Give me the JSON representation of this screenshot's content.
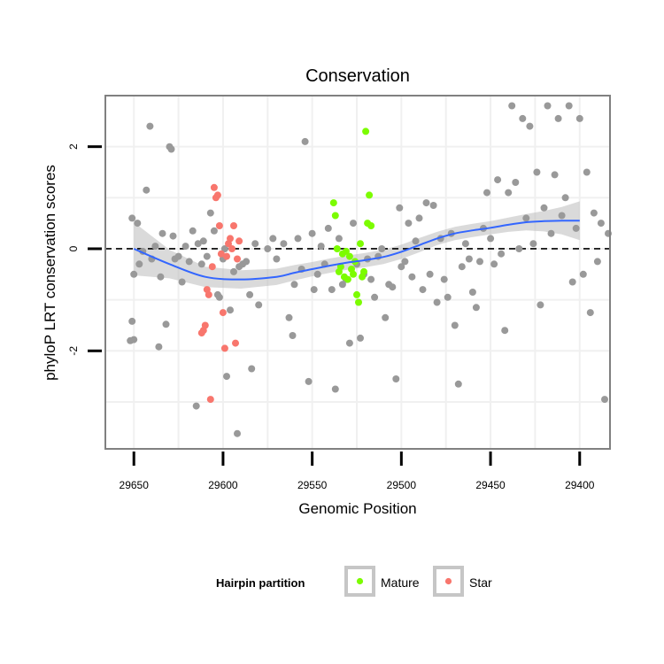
{
  "chart_data": {
    "type": "scatter",
    "title": "Conservation",
    "xlabel": "Genomic Position",
    "ylabel": "phyloP LRT conservation scores",
    "x_reversed": true,
    "xlim": [
      29666,
      29383
    ],
    "ylim": [
      -3.92,
      3.0
    ],
    "x_ticks": [
      {
        "value": 29650,
        "label": "29650"
      },
      {
        "value": 29600,
        "label": "29600"
      },
      {
        "value": 29550,
        "label": "29550"
      },
      {
        "value": 29500,
        "label": "29500"
      },
      {
        "value": 29450,
        "label": "29450"
      },
      {
        "value": 29400,
        "label": "29400"
      }
    ],
    "y_ticks": [
      {
        "value": 2,
        "label": "2"
      },
      {
        "value": 0,
        "label": "0"
      },
      {
        "value": -2,
        "label": "-2"
      }
    ],
    "reference_line": {
      "y": 0,
      "style": "dashed"
    },
    "legend": {
      "title": "Hairpin partition",
      "position": "bottom",
      "entries": [
        {
          "label": "Mature",
          "color": "#7cfc00"
        },
        {
          "label": "Star",
          "color": "#f8766d"
        }
      ]
    },
    "colors": {
      "other": "#999999",
      "Mature": "#7cfc00",
      "Star": "#f8766d",
      "smooth": "#3366ff",
      "ribbon": "#bbbbbb",
      "panel_bg": "#ffffff",
      "grid": "#f0f0f0"
    },
    "smooth": {
      "x": [
        29650,
        29630,
        29610,
        29590,
        29570,
        29560,
        29550,
        29540,
        29530,
        29520,
        29510,
        29500,
        29490,
        29480,
        29470,
        29460,
        29450,
        29440,
        29430,
        29420,
        29410,
        29400
      ],
      "y": [
        0.0,
        -0.3,
        -0.55,
        -0.6,
        -0.55,
        -0.47,
        -0.4,
        -0.33,
        -0.27,
        -0.22,
        -0.16,
        -0.06,
        0.07,
        0.2,
        0.3,
        0.36,
        0.41,
        0.47,
        0.52,
        0.54,
        0.55,
        0.55
      ],
      "ribbon_half_width": [
        0.52,
        0.28,
        0.2,
        0.18,
        0.16,
        0.15,
        0.14,
        0.14,
        0.14,
        0.14,
        0.14,
        0.14,
        0.14,
        0.13,
        0.13,
        0.13,
        0.13,
        0.14,
        0.16,
        0.2,
        0.27,
        0.38
      ]
    },
    "series": [
      {
        "name": "Other",
        "color": "#999999",
        "points": [
          [
            29651,
            0.6
          ],
          [
            29650,
            -1.78
          ],
          [
            29652,
            -1.8
          ],
          [
            29651,
            -1.42
          ],
          [
            29650,
            -0.5
          ],
          [
            29648,
            0.5
          ],
          [
            29647,
            -0.3
          ],
          [
            29645,
            -0.05
          ],
          [
            29643,
            1.15
          ],
          [
            29641,
            2.4
          ],
          [
            29640,
            -0.2
          ],
          [
            29638,
            0.05
          ],
          [
            29636,
            -1.92
          ],
          [
            29635,
            -0.55
          ],
          [
            29634,
            0.3
          ],
          [
            29632,
            -1.48
          ],
          [
            29630,
            2.0
          ],
          [
            29629,
            1.95
          ],
          [
            29628,
            0.25
          ],
          [
            29627,
            -0.2
          ],
          [
            29625,
            -0.15
          ],
          [
            29623,
            -0.65
          ],
          [
            29621,
            0.05
          ],
          [
            29619,
            -0.25
          ],
          [
            29617,
            0.35
          ],
          [
            29615,
            -3.08
          ],
          [
            29614,
            0.1
          ],
          [
            29612,
            -0.3
          ],
          [
            29611,
            0.15
          ],
          [
            29609,
            -0.15
          ],
          [
            29607,
            0.7
          ],
          [
            29605,
            0.35
          ],
          [
            29603,
            -0.9
          ],
          [
            29602,
            -0.95
          ],
          [
            29600,
            -0.2
          ],
          [
            29599,
            0.0
          ],
          [
            29598,
            -2.5
          ],
          [
            29596,
            -1.2
          ],
          [
            29594,
            -0.45
          ],
          [
            29592,
            -3.62
          ],
          [
            29591,
            -0.35
          ],
          [
            29589,
            -0.3
          ],
          [
            29587,
            -0.25
          ],
          [
            29585,
            -0.9
          ],
          [
            29584,
            -2.35
          ],
          [
            29582,
            0.1
          ],
          [
            29580,
            -1.1
          ],
          [
            29575,
            0.0
          ],
          [
            29572,
            0.2
          ],
          [
            29570,
            -0.2
          ],
          [
            29566,
            0.1
          ],
          [
            29563,
            -1.35
          ],
          [
            29561,
            -1.7
          ],
          [
            29560,
            -0.7
          ],
          [
            29558,
            0.2
          ],
          [
            29556,
            -0.4
          ],
          [
            29554,
            2.1
          ],
          [
            29552,
            -2.6
          ],
          [
            29550,
            0.3
          ],
          [
            29549,
            -0.8
          ],
          [
            29547,
            -0.5
          ],
          [
            29545,
            0.05
          ],
          [
            29543,
            -0.3
          ],
          [
            29541,
            0.4
          ],
          [
            29539,
            -0.8
          ],
          [
            29537,
            -2.75
          ],
          [
            29535,
            0.2
          ],
          [
            29533,
            -0.7
          ],
          [
            29531,
            -0.6
          ],
          [
            29529,
            -1.85
          ],
          [
            29527,
            0.5
          ],
          [
            29525,
            -0.3
          ],
          [
            29523,
            -1.75
          ],
          [
            29521,
            -0.5
          ],
          [
            29519,
            -0.2
          ],
          [
            29517,
            -0.6
          ],
          [
            29515,
            -0.95
          ],
          [
            29513,
            -0.15
          ],
          [
            29511,
            0.0
          ],
          [
            29509,
            -1.35
          ],
          [
            29507,
            -0.7
          ],
          [
            29505,
            -0.75
          ],
          [
            29503,
            -2.55
          ],
          [
            29501,
            0.8
          ],
          [
            29500,
            -0.35
          ],
          [
            29498,
            -0.25
          ],
          [
            29496,
            0.5
          ],
          [
            29494,
            -0.55
          ],
          [
            29492,
            0.15
          ],
          [
            29490,
            0.6
          ],
          [
            29488,
            -0.8
          ],
          [
            29486,
            0.9
          ],
          [
            29484,
            -0.5
          ],
          [
            29482,
            0.85
          ],
          [
            29480,
            -1.05
          ],
          [
            29478,
            0.2
          ],
          [
            29476,
            -0.6
          ],
          [
            29474,
            -0.95
          ],
          [
            29472,
            0.3
          ],
          [
            29470,
            -1.5
          ],
          [
            29468,
            -2.65
          ],
          [
            29466,
            -0.35
          ],
          [
            29464,
            0.1
          ],
          [
            29462,
            -0.2
          ],
          [
            29460,
            -0.85
          ],
          [
            29458,
            -1.15
          ],
          [
            29456,
            -0.25
          ],
          [
            29454,
            0.4
          ],
          [
            29452,
            1.1
          ],
          [
            29450,
            0.2
          ],
          [
            29448,
            -0.3
          ],
          [
            29446,
            1.35
          ],
          [
            29444,
            -0.1
          ],
          [
            29442,
            -1.6
          ],
          [
            29440,
            1.1
          ],
          [
            29438,
            2.8
          ],
          [
            29436,
            1.3
          ],
          [
            29434,
            0.0
          ],
          [
            29432,
            2.55
          ],
          [
            29430,
            0.6
          ],
          [
            29428,
            2.4
          ],
          [
            29426,
            0.1
          ],
          [
            29424,
            1.5
          ],
          [
            29422,
            -1.1
          ],
          [
            29420,
            0.8
          ],
          [
            29418,
            2.8
          ],
          [
            29416,
            0.3
          ],
          [
            29414,
            1.45
          ],
          [
            29412,
            2.55
          ],
          [
            29410,
            0.65
          ],
          [
            29408,
            1.0
          ],
          [
            29406,
            2.8
          ],
          [
            29404,
            -0.65
          ],
          [
            29402,
            0.4
          ],
          [
            29400,
            2.55
          ],
          [
            29398,
            -0.5
          ],
          [
            29396,
            1.5
          ],
          [
            29394,
            -1.25
          ],
          [
            29392,
            0.7
          ],
          [
            29390,
            -0.25
          ],
          [
            29388,
            0.5
          ],
          [
            29386,
            -2.95
          ],
          [
            29384,
            0.3
          ]
        ]
      },
      {
        "name": "Star",
        "color": "#f8766d",
        "points": [
          [
            29612,
            -1.65
          ],
          [
            29611,
            -1.6
          ],
          [
            29610,
            -1.5
          ],
          [
            29609,
            -0.8
          ],
          [
            29608,
            -0.9
          ],
          [
            29607,
            -2.95
          ],
          [
            29606,
            -0.35
          ],
          [
            29605,
            1.2
          ],
          [
            29604,
            1.0
          ],
          [
            29603,
            1.05
          ],
          [
            29602,
            0.45
          ],
          [
            29601,
            -0.1
          ],
          [
            29600,
            -1.25
          ],
          [
            29599,
            -1.95
          ],
          [
            29598,
            -0.15
          ],
          [
            29597,
            0.1
          ],
          [
            29596,
            0.2
          ],
          [
            29595,
            0.0
          ],
          [
            29594,
            0.45
          ],
          [
            29593,
            -1.85
          ],
          [
            29592,
            -0.2
          ],
          [
            29591,
            0.15
          ]
        ]
      },
      {
        "name": "Mature",
        "color": "#7cfc00",
        "points": [
          [
            29538,
            0.9
          ],
          [
            29537,
            0.65
          ],
          [
            29536,
            0.0
          ],
          [
            29535,
            -0.45
          ],
          [
            29534,
            -0.35
          ],
          [
            29533,
            -0.1
          ],
          [
            29532,
            -0.55
          ],
          [
            29531,
            -0.05
          ],
          [
            29530,
            -0.6
          ],
          [
            29529,
            -0.15
          ],
          [
            29528,
            -0.4
          ],
          [
            29527,
            -0.5
          ],
          [
            29526,
            -0.25
          ],
          [
            29525,
            -0.9
          ],
          [
            29524,
            -1.05
          ],
          [
            29523,
            0.1
          ],
          [
            29522,
            -0.55
          ],
          [
            29521,
            -0.45
          ],
          [
            29520,
            2.3
          ],
          [
            29519,
            0.5
          ],
          [
            29518,
            1.05
          ],
          [
            29517,
            0.45
          ]
        ]
      }
    ]
  }
}
